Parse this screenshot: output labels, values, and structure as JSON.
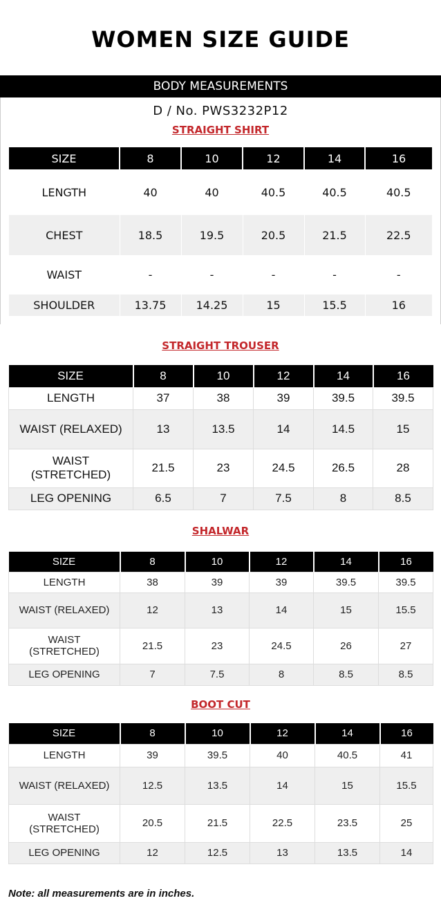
{
  "title": "WOMEN SIZE GUIDE",
  "body_measurements": "BODY MEASUREMENTS",
  "design_no": "D / No. PWS3232P12",
  "sizes": [
    "8",
    "10",
    "12",
    "14",
    "16"
  ],
  "size_label": "SIZE",
  "straight_shirt": {
    "title": "STRAIGHT SHIRT",
    "rows": [
      {
        "label": "LENGTH",
        "values": [
          "40",
          "40",
          "40.5",
          "40.5",
          "40.5"
        ]
      },
      {
        "label": "CHEST",
        "values": [
          "18.5",
          "19.5",
          "20.5",
          "21.5",
          "22.5"
        ]
      },
      {
        "label": "WAIST",
        "values": [
          "-",
          "-",
          "-",
          "-",
          "-"
        ]
      },
      {
        "label": "SHOULDER",
        "values": [
          "13.75",
          "14.25",
          "15",
          "15.5",
          "16"
        ]
      }
    ]
  },
  "straight_trouser": {
    "title": "STRAIGHT TROUSER",
    "rows": [
      {
        "label": "LENGTH",
        "values": [
          "37",
          "38",
          "39",
          "39.5",
          "39.5"
        ]
      },
      {
        "label": "WAIST (RELAXED)",
        "values": [
          "13",
          "13.5",
          "14",
          "14.5",
          "15"
        ]
      },
      {
        "label": "WAIST (STRETCHED)",
        "label_lines": [
          "WAIST",
          "(STRETCHED)"
        ],
        "values": [
          "21.5",
          "23",
          "24.5",
          "26.5",
          "28"
        ]
      },
      {
        "label": "LEG OPENING",
        "values": [
          "6.5",
          "7",
          "7.5",
          "8",
          "8.5"
        ]
      }
    ]
  },
  "shalwar": {
    "title": "SHALWAR",
    "rows": [
      {
        "label": "LENGTH",
        "values": [
          "38",
          "39",
          "39",
          "39.5",
          "39.5"
        ]
      },
      {
        "label": "WAIST (RELAXED)",
        "values": [
          "12",
          "13",
          "14",
          "15",
          "15.5"
        ]
      },
      {
        "label": "WAIST (STRETCHED)",
        "label_lines": [
          "WAIST",
          "(STRETCHED)"
        ],
        "values": [
          "21.5",
          "23",
          "24.5",
          "26",
          "27"
        ]
      },
      {
        "label": "LEG OPENING",
        "values": [
          "7",
          "7.5",
          "8",
          "8.5",
          "8.5"
        ]
      }
    ]
  },
  "boot_cut": {
    "title": "BOOT CUT",
    "rows": [
      {
        "label": "LENGTH",
        "values": [
          "39",
          "39.5",
          "40",
          "40.5",
          "41"
        ]
      },
      {
        "label": "WAIST (RELAXED)",
        "values": [
          "12.5",
          "13.5",
          "14",
          "15",
          "15.5"
        ]
      },
      {
        "label": "WAIST (STRETCHED)",
        "label_lines": [
          "WAIST",
          "(STRETCHED)"
        ],
        "values": [
          "20.5",
          "21.5",
          "22.5",
          "23.5",
          "25"
        ]
      },
      {
        "label": "LEG OPENING",
        "values": [
          "12",
          "12.5",
          "13",
          "13.5",
          "14"
        ]
      }
    ]
  },
  "note": "Note: all measurements are in inches.",
  "colors": {
    "header_bg": "#000000",
    "section_title": "#c3272b",
    "shade": "#efefef"
  }
}
